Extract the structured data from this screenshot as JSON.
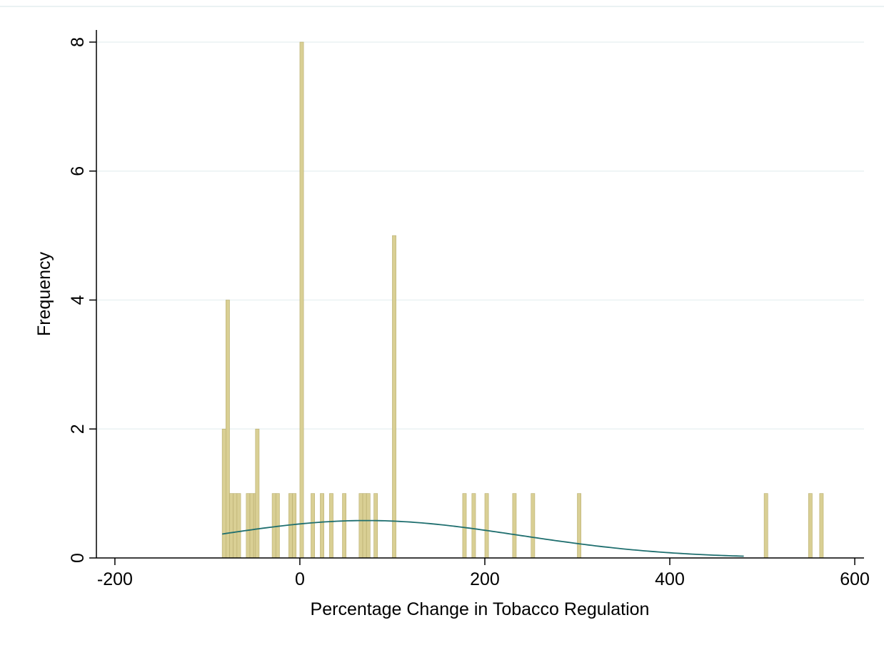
{
  "chart_data": {
    "type": "bar",
    "title": "",
    "xlabel": "Percentage Change in Tobacco Regulation",
    "ylabel": "Frequency",
    "xlim": [
      -220,
      610
    ],
    "ylim": [
      0,
      8.2
    ],
    "x_ticks": [
      -200,
      0,
      200,
      400,
      600
    ],
    "y_ticks": [
      0,
      2,
      4,
      6,
      8
    ],
    "grid": true,
    "bar_width": 4,
    "bars": [
      {
        "x": -82,
        "y": 2
      },
      {
        "x": -78,
        "y": 4
      },
      {
        "x": -74,
        "y": 1
      },
      {
        "x": -70,
        "y": 1
      },
      {
        "x": -66,
        "y": 1
      },
      {
        "x": -56,
        "y": 1
      },
      {
        "x": -52,
        "y": 1
      },
      {
        "x": -48,
        "y": 1
      },
      {
        "x": -46,
        "y": 2
      },
      {
        "x": -28,
        "y": 1
      },
      {
        "x": -24,
        "y": 1
      },
      {
        "x": -10,
        "y": 1
      },
      {
        "x": -6,
        "y": 1
      },
      {
        "x": 2,
        "y": 8
      },
      {
        "x": 14,
        "y": 1
      },
      {
        "x": 24,
        "y": 1
      },
      {
        "x": 34,
        "y": 1
      },
      {
        "x": 48,
        "y": 1
      },
      {
        "x": 66,
        "y": 1
      },
      {
        "x": 70,
        "y": 1
      },
      {
        "x": 74,
        "y": 1
      },
      {
        "x": 82,
        "y": 1
      },
      {
        "x": 102,
        "y": 5
      },
      {
        "x": 178,
        "y": 1
      },
      {
        "x": 188,
        "y": 1
      },
      {
        "x": 202,
        "y": 1
      },
      {
        "x": 232,
        "y": 1
      },
      {
        "x": 252,
        "y": 1
      },
      {
        "x": 302,
        "y": 1
      },
      {
        "x": 504,
        "y": 1
      },
      {
        "x": 552,
        "y": 1
      },
      {
        "x": 564,
        "y": 1
      }
    ],
    "normal_curve": {
      "mean": 72,
      "sd": 165,
      "scale": 240,
      "x_range": [
        -84,
        480
      ]
    },
    "colors": {
      "bar_fill": "#d9cf94",
      "bar_stroke": "#b8ad6e",
      "curve": "#1f6f6f",
      "grid": "#eaf2f3",
      "axis": "#000000",
      "background": "#ffffff",
      "top_rule": "#eaf2f3"
    }
  }
}
